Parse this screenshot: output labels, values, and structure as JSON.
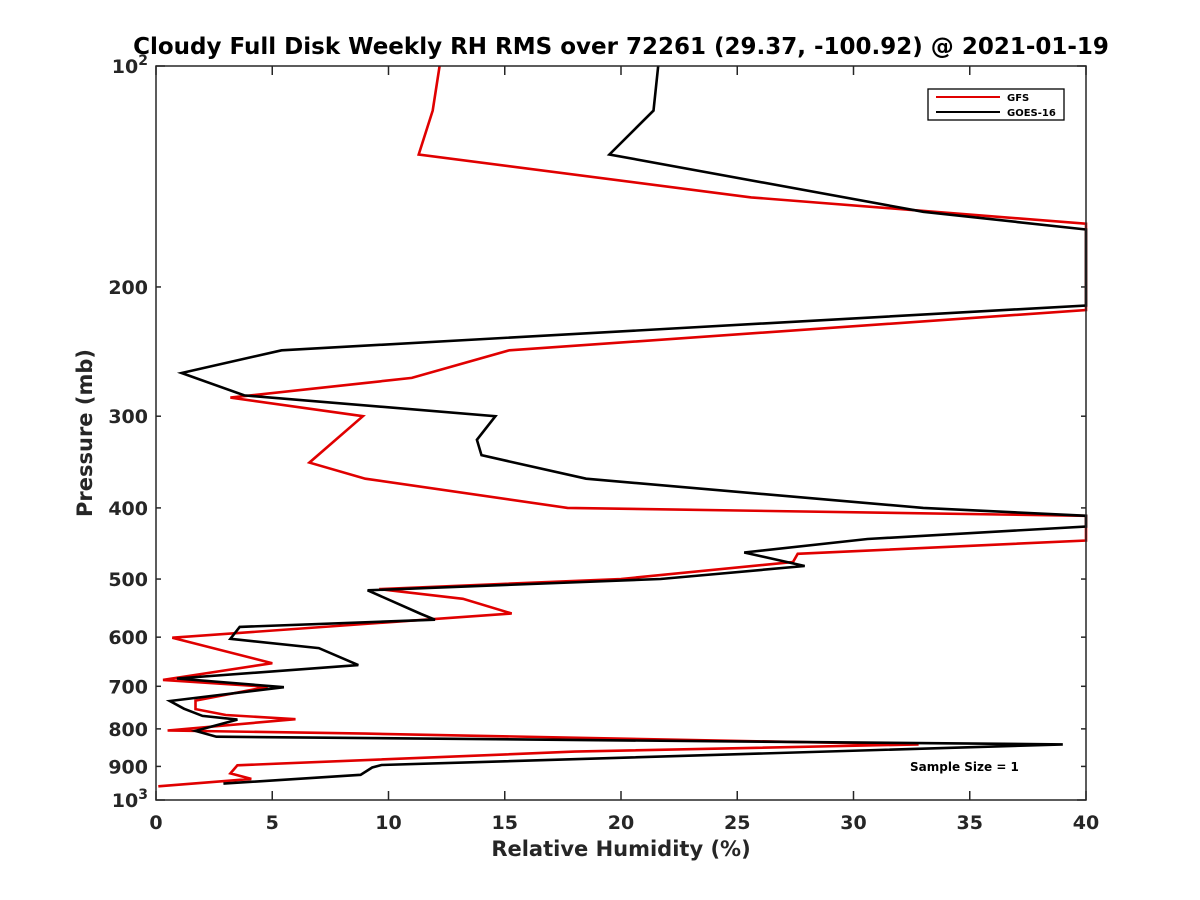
{
  "chart_data": {
    "type": "line",
    "title": "Cloudy Full Disk Weekly RH RMS over 72261 (29.37, -100.92) @ 2021-01-19",
    "xlabel": "Relative Humidity (%)",
    "ylabel": "Pressure (mb)",
    "xlim": [
      0,
      40
    ],
    "ylim": [
      100,
      1000
    ],
    "yscale": "log",
    "y_reversed": true,
    "xticks": [
      0,
      5,
      10,
      15,
      20,
      25,
      30,
      35,
      40
    ],
    "yticks": [
      {
        "value": 100,
        "label": "10",
        "sup": "2"
      },
      {
        "value": 200,
        "label": "200"
      },
      {
        "value": 300,
        "label": "300"
      },
      {
        "value": 400,
        "label": "400"
      },
      {
        "value": 500,
        "label": "500"
      },
      {
        "value": 600,
        "label": "600"
      },
      {
        "value": 700,
        "label": "700"
      },
      {
        "value": 800,
        "label": "800"
      },
      {
        "value": 900,
        "label": "900"
      },
      {
        "value": 1000,
        "label": "10",
        "sup": "3"
      }
    ],
    "grid": false,
    "legend_position": "top-right",
    "annotation": "Sample Size = 1",
    "series": [
      {
        "name": "GFS",
        "color": "#e00000",
        "points": [
          [
            12.2,
            100
          ],
          [
            11.9,
            115
          ],
          [
            11.3,
            132
          ],
          [
            25.6,
            151
          ],
          [
            40.0,
            164
          ],
          [
            40.0,
            215
          ],
          [
            15.2,
            244
          ],
          [
            11.0,
            266
          ],
          [
            3.2,
            283
          ],
          [
            8.9,
            300
          ],
          [
            6.6,
            347
          ],
          [
            9.0,
            365
          ],
          [
            17.7,
            400
          ],
          [
            40.0,
            410
          ],
          [
            40.0,
            443
          ],
          [
            27.6,
            462
          ],
          [
            27.4,
            474
          ],
          [
            20.0,
            500
          ],
          [
            9.6,
            516
          ],
          [
            13.2,
            532
          ],
          [
            15.3,
            557
          ],
          [
            0.7,
            601
          ],
          [
            5.0,
            651
          ],
          [
            0.3,
            686
          ],
          [
            4.8,
            701
          ],
          [
            1.7,
            732
          ],
          [
            1.7,
            752
          ],
          [
            3.0,
            766
          ],
          [
            6.0,
            776
          ],
          [
            0.5,
            804
          ],
          [
            9.0,
            812
          ],
          [
            32.8,
            840
          ],
          [
            18.0,
            859
          ],
          [
            3.5,
            897
          ],
          [
            3.2,
            920
          ],
          [
            4.1,
            936
          ],
          [
            0.1,
            958
          ]
        ]
      },
      {
        "name": "GOES-16",
        "color": "#000000",
        "points": [
          [
            21.6,
            100
          ],
          [
            21.4,
            115
          ],
          [
            19.5,
            132
          ],
          [
            33.0,
            158
          ],
          [
            40.0,
            167
          ],
          [
            40.0,
            212
          ],
          [
            5.4,
            244
          ],
          [
            1.1,
            262
          ],
          [
            3.8,
            281
          ],
          [
            14.6,
            300
          ],
          [
            13.8,
            323
          ],
          [
            14.0,
            339
          ],
          [
            18.5,
            365
          ],
          [
            33.0,
            400
          ],
          [
            40.0,
            410
          ],
          [
            40.0,
            424
          ],
          [
            30.6,
            441
          ],
          [
            25.3,
            460
          ],
          [
            27.9,
            480
          ],
          [
            21.7,
            500
          ],
          [
            9.1,
            518
          ],
          [
            11.4,
            558
          ],
          [
            12.0,
            568
          ],
          [
            3.6,
            581
          ],
          [
            3.2,
            603
          ],
          [
            7.0,
            621
          ],
          [
            8.7,
            655
          ],
          [
            0.9,
            683
          ],
          [
            5.5,
            702
          ],
          [
            0.6,
            733
          ],
          [
            1.2,
            751
          ],
          [
            2.0,
            768
          ],
          [
            3.5,
            777
          ],
          [
            1.7,
            805
          ],
          [
            2.6,
            820
          ],
          [
            39.0,
            840
          ],
          [
            9.7,
            896
          ],
          [
            9.3,
            903
          ],
          [
            8.8,
            924
          ],
          [
            2.9,
            950
          ]
        ]
      }
    ]
  }
}
